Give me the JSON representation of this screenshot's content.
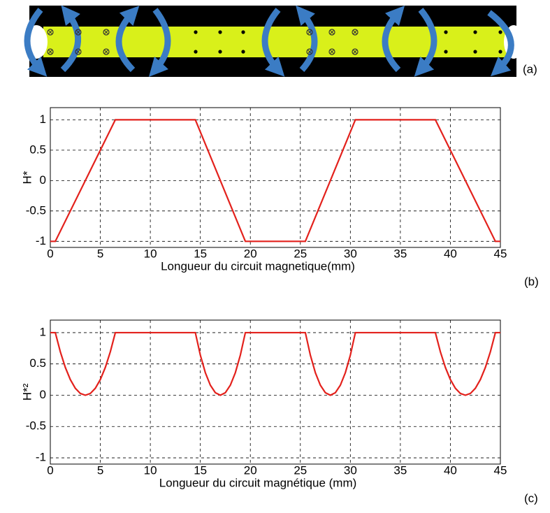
{
  "diagram": {
    "label": "(a)"
  },
  "chart_data": [
    {
      "type": "line",
      "label": "(b)",
      "xlabel": "Longueur du circuit magnetique(mm)",
      "ylabel": "H*",
      "x": [
        0,
        0.5,
        6.5,
        14.5,
        19.5,
        25.5,
        30.5,
        38.5,
        44.5,
        45
      ],
      "series": [
        {
          "color": "#e3211c",
          "values": [
            -1,
            -1,
            1,
            1,
            -1,
            -1,
            1,
            1,
            -1,
            -1
          ]
        }
      ],
      "xlim": [
        0,
        45
      ],
      "xticks": [
        0,
        5,
        10,
        15,
        20,
        25,
        30,
        35,
        40,
        45
      ],
      "ylim": [
        -1.1,
        1.2
      ],
      "yticks": [
        1,
        0.5,
        0,
        -0.5,
        -1
      ],
      "grid": true
    },
    {
      "type": "line",
      "label": "(c)",
      "xlabel": "Longueur du circuit magnétique (mm)",
      "ylabel": "H*²",
      "x": [
        0,
        0.5,
        1,
        1.5,
        2,
        2.5,
        3,
        3.5,
        4,
        4.5,
        5,
        5.5,
        6,
        6.5,
        7,
        7.5,
        8,
        8.5,
        9,
        9.5,
        10,
        10.5,
        11,
        11.5,
        12,
        12.5,
        13,
        13.5,
        14,
        14.5,
        15,
        15.5,
        16,
        16.5,
        17,
        17.5,
        18,
        18.5,
        19,
        19.5,
        20,
        20.5,
        21,
        21.5,
        22,
        22.5,
        23,
        23.5,
        24,
        24.5,
        25,
        25.5,
        26,
        26.5,
        27,
        27.5,
        28,
        28.5,
        29,
        29.5,
        30,
        30.5,
        31,
        31.5,
        32,
        32.5,
        33,
        33.5,
        34,
        34.5,
        35,
        35.5,
        36,
        36.5,
        37,
        37.5,
        38,
        38.5,
        39,
        39.5,
        40,
        40.5,
        41,
        41.5,
        42,
        42.5,
        43,
        43.5,
        44,
        44.5,
        45
      ],
      "series": [
        {
          "color": "#e3211c",
          "values": [
            1,
            1,
            0.694,
            0.444,
            0.25,
            0.111,
            0.028,
            0,
            0.028,
            0.111,
            0.25,
            0.444,
            0.694,
            1,
            1,
            1,
            1,
            1,
            1,
            1,
            1,
            1,
            1,
            1,
            1,
            1,
            1,
            1,
            1,
            1,
            0.64,
            0.36,
            0.16,
            0.04,
            0,
            0.04,
            0.16,
            0.36,
            0.64,
            1,
            1,
            1,
            1,
            1,
            1,
            1,
            1,
            1,
            1,
            1,
            1,
            1,
            0.64,
            0.36,
            0.16,
            0.04,
            0,
            0.04,
            0.16,
            0.36,
            0.64,
            1,
            1,
            1,
            1,
            1,
            1,
            1,
            1,
            1,
            1,
            1,
            1,
            1,
            1,
            1,
            1,
            1,
            0.694,
            0.444,
            0.25,
            0.111,
            0.028,
            0,
            0.028,
            0.111,
            0.25,
            0.444,
            0.694,
            1,
            1
          ]
        }
      ],
      "xlim": [
        0,
        45
      ],
      "xticks": [
        0,
        5,
        10,
        15,
        20,
        25,
        30,
        35,
        40,
        45
      ],
      "ylim": [
        -1.1,
        1.2
      ],
      "yticks": [
        1,
        0.5,
        0,
        -0.5,
        -1
      ],
      "grid": true
    }
  ]
}
